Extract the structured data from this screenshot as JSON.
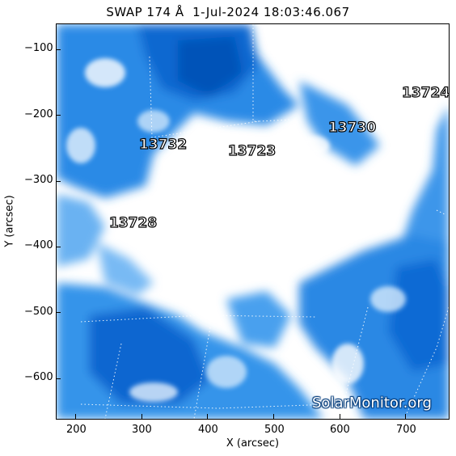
{
  "title": "SWAP 174 Å  1-Jul-2024 18:03:46.067",
  "x_axis": {
    "label": "X (arcsec)",
    "ticks": [
      "200",
      "300",
      "400",
      "500",
      "600",
      "700"
    ]
  },
  "y_axis": {
    "label": "Y (arcsec)",
    "ticks": [
      "−100",
      "−200",
      "−300",
      "−400",
      "−500",
      "−600"
    ]
  },
  "active_regions": [
    {
      "id": "13732"
    },
    {
      "id": "13723"
    },
    {
      "id": "13730"
    },
    {
      "id": "13724"
    },
    {
      "id": "13728"
    }
  ],
  "watermark": "SolarMonitor.org",
  "colors": {
    "bright": "#ffffff",
    "mid": "#5aa8f0",
    "dark": "#0a6fd8",
    "deep": "#004fb0"
  }
}
